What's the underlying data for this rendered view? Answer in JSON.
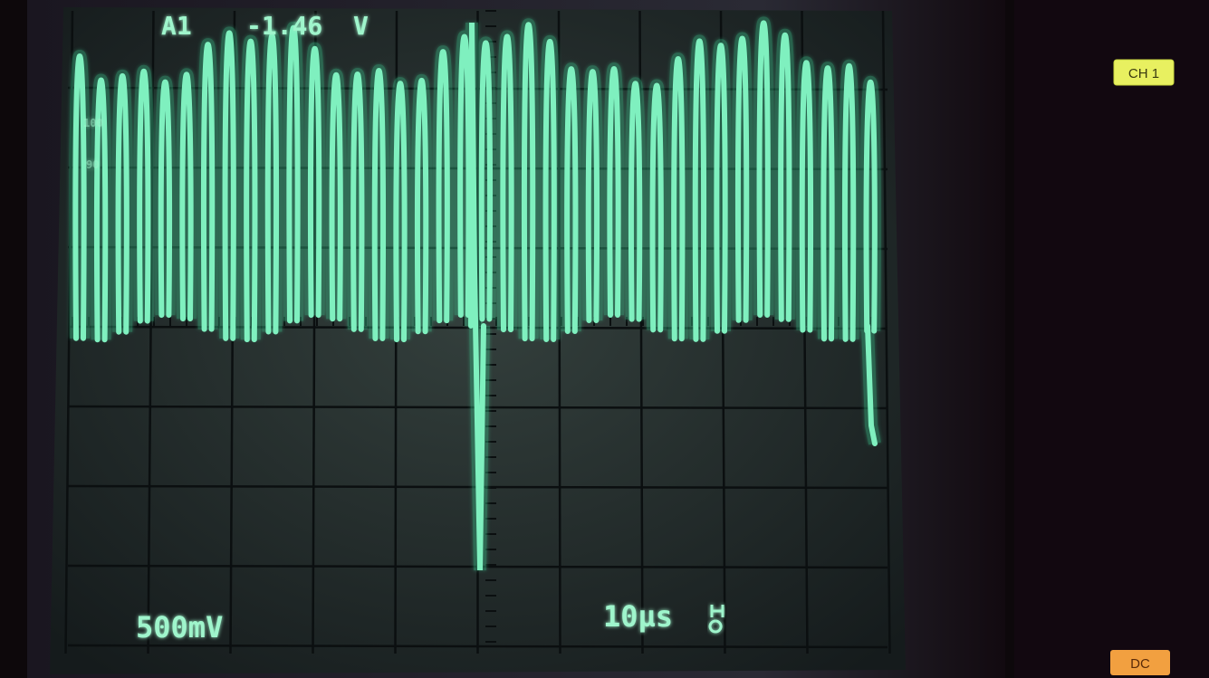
{
  "screen": {
    "readout": {
      "channel": "A1",
      "value": "-1.46",
      "unit": "V"
    },
    "scale_labels": [
      "100",
      "90"
    ],
    "volts_per_div": "500mV",
    "time_per_div": "10µs"
  },
  "panel": {
    "channel_button": "CH 1",
    "coupling_button": "DC"
  }
}
